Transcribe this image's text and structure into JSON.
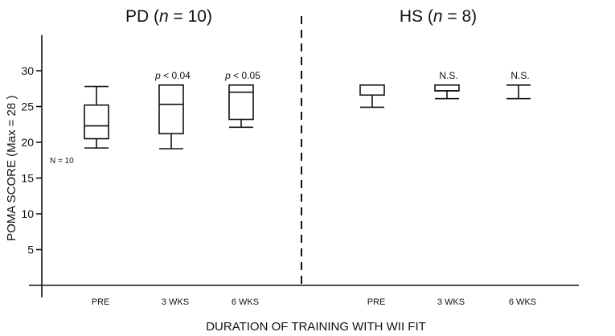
{
  "chart_data": {
    "type": "box",
    "panels": [
      {
        "name": "PD",
        "title_prefix": "PD (",
        "title_italic": "n",
        "title_suffix": " = 10)",
        "groups": [
          {
            "category": "PRE",
            "whisker_low": 19.2,
            "q1": 20.5,
            "median": 22.3,
            "q3": 25.2,
            "whisker_high": 27.8,
            "annotation": "",
            "annotation_italic": ""
          },
          {
            "category": "3 WKS",
            "whisker_low": 19.1,
            "q1": 21.2,
            "median": 25.3,
            "q3": 28.0,
            "whisker_high": 28.0,
            "annotation": "< 0.04",
            "annotation_italic": "p"
          },
          {
            "category": "6 WKS",
            "whisker_low": 22.1,
            "q1": 23.2,
            "median": 27.0,
            "q3": 28.0,
            "whisker_high": 28.0,
            "annotation": "< 0.05",
            "annotation_italic": "p"
          }
        ]
      },
      {
        "name": "HS",
        "title_prefix": "HS (",
        "title_italic": "n",
        "title_suffix": " = 8)",
        "groups": [
          {
            "category": "PRE",
            "whisker_low": 24.9,
            "q1": 26.6,
            "median": 26.6,
            "q3": 28.0,
            "whisker_high": 28.0,
            "annotation": "",
            "annotation_italic": ""
          },
          {
            "category": "3 WKS",
            "whisker_low": 26.1,
            "q1": 27.2,
            "median": 27.2,
            "q3": 28.0,
            "whisker_high": 28.0,
            "annotation": "N.S.",
            "annotation_italic": ""
          },
          {
            "category": "6 WKS",
            "whisker_low": 26.1,
            "q1": 28.0,
            "median": 28.0,
            "q3": 28.0,
            "whisker_high": 28.0,
            "annotation": "N.S.",
            "annotation_italic": ""
          }
        ]
      }
    ],
    "side_note": "N = 10",
    "xlabel": "DURATION OF TRAINING WITH WII FIT",
    "ylabel": "POMA SCORE (Max = 28 )",
    "yticks": [
      5,
      10,
      15,
      20,
      25,
      30
    ],
    "ylim": [
      0,
      35
    ],
    "grid": false,
    "legend": "none",
    "divider": "dashed vertical line between panels"
  },
  "colors": {
    "stroke": "#111111",
    "background": "#ffffff"
  }
}
